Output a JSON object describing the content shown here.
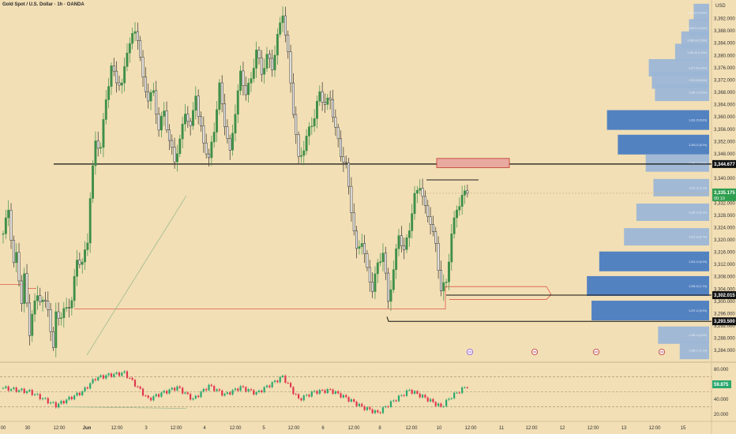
{
  "header": {
    "symbol_title": "Gold Spot / U.S. Dollar · 1h · OANDA"
  },
  "axis": {
    "currency": "USD",
    "price_ticks": [
      "3,392.000",
      "3,388.000",
      "3,384.000",
      "3,380.000",
      "3,376.000",
      "3,372.000",
      "3,368.000",
      "3,364.000",
      "3,360.000",
      "3,356.000",
      "3,352.000",
      "3,348.000",
      "3,340.000",
      "3,336.000",
      "3,332.000",
      "3,328.000",
      "3,324.000",
      "3,320.000",
      "3,316.000",
      "3,312.000",
      "3,308.000",
      "3,304.000",
      "3,300.000",
      "3,296.000",
      "3,292.000",
      "3,288.000",
      "3,284.000"
    ],
    "time_ticks": [
      "00",
      "30",
      "12:00",
      "Jun",
      "12:00",
      "3",
      "12:00",
      "4",
      "12:00",
      "5",
      "12:00",
      "6",
      "12:00",
      "8",
      "12:00",
      "10",
      "12:00",
      "11",
      "12:00",
      "12",
      "12:00",
      "13",
      "12:00",
      "15"
    ],
    "osc_ticks": [
      "80.000",
      "40.000",
      "20.000"
    ]
  },
  "price_labels": {
    "resistance": "3,344.677",
    "current": "3,335.175",
    "countdown": "00:10",
    "support_1": "3,302.015",
    "support_2": "3,293.500",
    "oscillator": "59.875"
  },
  "colors": {
    "background": "#f2dfb5",
    "bull": "#3f8f4a",
    "bear": "#9e9e9e",
    "volume_profile_dark": "#4a7cc2",
    "volume_profile_light": "#9cb6d6",
    "support_line": "#e05a4a",
    "supply_zone": "#e8a9a0",
    "current_price": "#2e9e4f",
    "osc_up": "#2aa86f",
    "osc_down": "#e0364f"
  },
  "chart_data": {
    "type": "candlestick",
    "price_range": [
      3282,
      3396
    ],
    "oscillator_range": [
      15,
      85
    ],
    "key_levels": [
      {
        "name": "resistance",
        "price": 3344.677
      },
      {
        "name": "support_1",
        "price": 3302.015
      },
      {
        "name": "support_2",
        "price": 3293.5
      }
    ],
    "supply_zone": {
      "from": 3343.5,
      "to": 3346.5
    },
    "current_price": 3335.175,
    "oscillator_value": 59.875,
    "volume_profile": [
      {
        "price": 3394,
        "width": 0.1,
        "strong": false
      },
      {
        "price": 3389,
        "width": 0.13,
        "strong": false
      },
      {
        "price": 3385,
        "width": 0.18,
        "strong": false
      },
      {
        "price": 3381,
        "width": 0.22,
        "strong": false
      },
      {
        "price": 3376,
        "width": 0.39,
        "strong": false
      },
      {
        "price": 3372,
        "width": 0.37,
        "strong": false
      },
      {
        "price": 3368,
        "width": 0.35,
        "strong": false
      },
      {
        "price": 3359,
        "width": 0.66,
        "strong": true
      },
      {
        "price": 3351,
        "width": 0.59,
        "strong": true
      },
      {
        "price": 3345,
        "width": 0.41,
        "strong": false
      },
      {
        "price": 3337,
        "width": 0.36,
        "strong": false
      },
      {
        "price": 3329,
        "width": 0.47,
        "strong": false
      },
      {
        "price": 3321,
        "width": 0.55,
        "strong": false
      },
      {
        "price": 3313,
        "width": 0.71,
        "strong": true
      },
      {
        "price": 3305,
        "width": 0.79,
        "strong": true
      },
      {
        "price": 3297,
        "width": 0.76,
        "strong": true
      },
      {
        "price": 3289,
        "width": 0.33,
        "strong": false
      },
      {
        "price": 3284,
        "width": 0.19,
        "strong": false
      }
    ],
    "vp_labels": [
      "3,393.24 (0.34%)",
      "3,389.20 (0.42%)",
      "3,385.18 (1.55%)",
      "3,381.16 (1.32%)",
      "3,377.06 (3.5%)",
      "3,373.16 (2.8%)",
      "3,369.14 (2.5%)",
      "3,361.15 (5.8%)",
      "3,353.11 (5.2%)",
      "3,345.12 (3.8%)",
      "3,337.11 (3.1%)",
      "3,329.14 (4.1%)",
      "3,321.13 (4.7%)",
      "3,313.12 (6.2%)",
      "3,305.15 (7.1%)",
      "3,297.12 (6.9%)",
      "3,289.14 (2.6%)",
      "3,285.17 (1.1%)"
    ],
    "swings": [
      [
        0,
        3322
      ],
      [
        2,
        3330
      ],
      [
        4,
        3312
      ],
      [
        5,
        3315
      ],
      [
        7,
        3300
      ],
      [
        8,
        3308
      ],
      [
        10,
        3290
      ],
      [
        11,
        3296
      ],
      [
        13,
        3302
      ],
      [
        15,
        3300
      ],
      [
        17,
        3298
      ],
      [
        19,
        3284
      ],
      [
        20,
        3296
      ],
      [
        22,
        3295
      ],
      [
        24,
        3298
      ],
      [
        26,
        3300
      ],
      [
        28,
        3314
      ],
      [
        30,
        3312
      ],
      [
        32,
        3320
      ],
      [
        33,
        3334
      ],
      [
        35,
        3352
      ],
      [
        37,
        3350
      ],
      [
        39,
        3366
      ],
      [
        41,
        3376
      ],
      [
        43,
        3372
      ],
      [
        45,
        3370
      ],
      [
        47,
        3382
      ],
      [
        50,
        3388
      ],
      [
        51,
        3386
      ],
      [
        53,
        3372
      ],
      [
        55,
        3366
      ],
      [
        57,
        3368
      ],
      [
        59,
        3356
      ],
      [
        61,
        3362
      ],
      [
        63,
        3352
      ],
      [
        65,
        3346
      ],
      [
        67,
        3352
      ],
      [
        69,
        3362
      ],
      [
        71,
        3356
      ],
      [
        73,
        3368
      ],
      [
        74,
        3360
      ],
      [
        76,
        3352
      ],
      [
        78,
        3346
      ],
      [
        80,
        3356
      ],
      [
        82,
        3370
      ],
      [
        84,
        3358
      ],
      [
        86,
        3348
      ],
      [
        88,
        3362
      ],
      [
        90,
        3374
      ],
      [
        92,
        3368
      ],
      [
        94,
        3372
      ],
      [
        96,
        3382
      ],
      [
        98,
        3374
      ],
      [
        100,
        3380
      ],
      [
        102,
        3376
      ],
      [
        104,
        3386
      ],
      [
        106,
        3394
      ],
      [
        108,
        3380
      ],
      [
        110,
        3362
      ],
      [
        112,
        3346
      ],
      [
        114,
        3350
      ],
      [
        116,
        3356
      ],
      [
        118,
        3360
      ],
      [
        120,
        3368
      ],
      [
        122,
        3364
      ],
      [
        124,
        3366
      ],
      [
        126,
        3356
      ],
      [
        128,
        3348
      ],
      [
        130,
        3344
      ],
      [
        132,
        3330
      ],
      [
        134,
        3316
      ],
      [
        136,
        3320
      ],
      [
        138,
        3310
      ],
      [
        140,
        3304
      ],
      [
        142,
        3312
      ],
      [
        144,
        3316
      ],
      [
        146,
        3300
      ],
      [
        148,
        3310
      ],
      [
        150,
        3322
      ],
      [
        152,
        3316
      ],
      [
        154,
        3324
      ],
      [
        156,
        3334
      ],
      [
        158,
        3338
      ],
      [
        160,
        3330
      ],
      [
        162,
        3326
      ],
      [
        164,
        3318
      ],
      [
        166,
        3304
      ],
      [
        168,
        3306
      ],
      [
        170,
        3322
      ],
      [
        172,
        3330
      ],
      [
        174,
        3334
      ],
      [
        176,
        3336
      ]
    ],
    "osc_swings": [
      [
        0,
        55
      ],
      [
        10,
        50
      ],
      [
        20,
        32
      ],
      [
        30,
        50
      ],
      [
        35,
        68
      ],
      [
        40,
        72
      ],
      [
        46,
        75
      ],
      [
        50,
        60
      ],
      [
        55,
        40
      ],
      [
        60,
        48
      ],
      [
        66,
        56
      ],
      [
        72,
        40
      ],
      [
        78,
        58
      ],
      [
        84,
        46
      ],
      [
        90,
        56
      ],
      [
        96,
        48
      ],
      [
        106,
        70
      ],
      [
        112,
        40
      ],
      [
        118,
        50
      ],
      [
        124,
        52
      ],
      [
        130,
        42
      ],
      [
        136,
        30
      ],
      [
        142,
        22
      ],
      [
        148,
        38
      ],
      [
        154,
        52
      ],
      [
        160,
        42
      ],
      [
        166,
        30
      ],
      [
        170,
        44
      ],
      [
        176,
        58
      ]
    ]
  }
}
